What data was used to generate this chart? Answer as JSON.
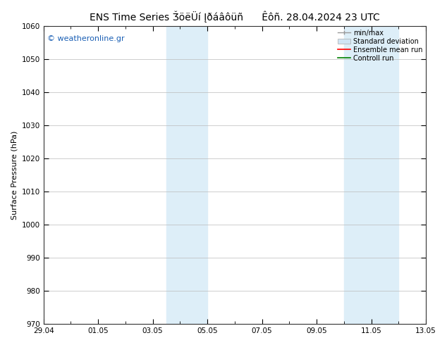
{
  "title_left": "ENS Time Series ǮöëÜí Įðáâôüñ",
  "title_right": "Êôñ. 28.04.2024 23 UTC",
  "ylabel": "Surface Pressure (hPa)",
  "ylim": [
    970,
    1060
  ],
  "yticks": [
    970,
    980,
    990,
    1000,
    1010,
    1020,
    1030,
    1040,
    1050,
    1060
  ],
  "xtick_labels": [
    "29.04",
    "01.05",
    "03.05",
    "05.05",
    "07.05",
    "09.05",
    "11.05",
    "13.05"
  ],
  "xtick_positions": [
    0,
    2,
    4,
    6,
    8,
    10,
    12,
    14
  ],
  "xlim": [
    0,
    14
  ],
  "shaded_bands": [
    {
      "x_start": 4.5,
      "x_end": 6.0
    },
    {
      "x_start": 11.0,
      "x_end": 13.0
    }
  ],
  "shade_color": "#ddeef8",
  "watermark": "© weatheronline.gr",
  "watermark_color": "#1a5fb4",
  "bg_color": "#ffffff",
  "grid_color": "#bbbbbb",
  "tick_label_fontsize": 7.5,
  "axis_label_fontsize": 8,
  "title_fontsize": 10,
  "legend_fontsize": 7
}
